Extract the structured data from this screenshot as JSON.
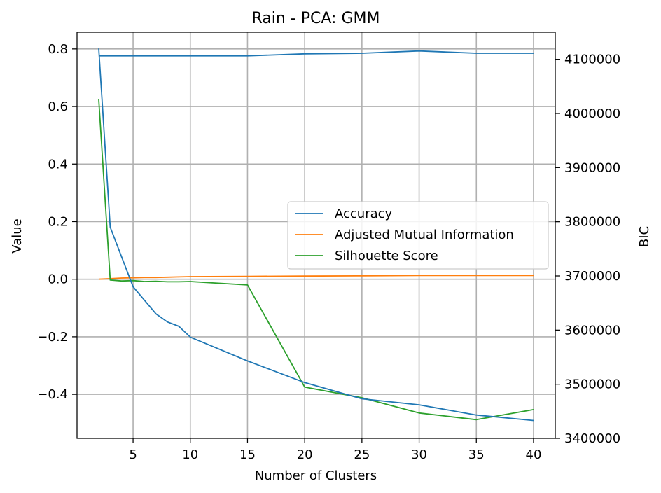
{
  "chart_data": {
    "type": "line",
    "title": "Rain - PCA: GMM",
    "xlabel": "Number of Clusters",
    "ylabel": "Value",
    "y2label": "BIC",
    "xlim": [
      0.1,
      41.9
    ],
    "ylim": [
      -0.553,
      0.858
    ],
    "y2lim": [
      3400000,
      4150000
    ],
    "xticks": [
      5,
      10,
      15,
      20,
      25,
      30,
      35,
      40
    ],
    "yticks": [
      -0.4,
      -0.2,
      0.0,
      0.2,
      0.4,
      0.6,
      0.8
    ],
    "yticklabels": [
      "−0.4",
      "−0.2",
      "0.0",
      "0.2",
      "0.4",
      "0.6",
      "0.8"
    ],
    "y2ticks": [
      3400000,
      3500000,
      3600000,
      3700000,
      3800000,
      3900000,
      4000000,
      4100000
    ],
    "y2ticklabels": [
      "3400000",
      "3500000",
      "3600000",
      "3700000",
      "3800000",
      "3900000",
      "4000000",
      "4100000"
    ],
    "grid": true,
    "legend_position": "center-right",
    "legend": [
      "Accuracy",
      "Adjusted Mutual Information",
      "Silhouette Score"
    ],
    "series": [
      {
        "name": "Accuracy",
        "axis": "left",
        "color": "#1f77b4",
        "x": [
          2,
          3,
          4,
          5,
          6,
          7,
          8,
          9,
          10,
          15,
          20,
          25,
          30,
          35,
          40
        ],
        "values": [
          0.776,
          0.776,
          0.776,
          0.776,
          0.776,
          0.776,
          0.776,
          0.776,
          0.776,
          0.776,
          0.783,
          0.785,
          0.793,
          0.785,
          0.785
        ]
      },
      {
        "name": "Adjusted Mutual Information",
        "axis": "left",
        "color": "#ff7f0e",
        "x": [
          2,
          3,
          4,
          5,
          6,
          7,
          8,
          9,
          10,
          15,
          20,
          25,
          30,
          35,
          40
        ],
        "values": [
          0.0,
          0.002,
          0.004,
          0.005,
          0.006,
          0.006,
          0.007,
          0.008,
          0.009,
          0.01,
          0.011,
          0.012,
          0.013,
          0.013,
          0.013
        ]
      },
      {
        "name": "Silhouette Score",
        "axis": "left",
        "color": "#2ca02c",
        "x": [
          2,
          3,
          4,
          5,
          6,
          7,
          8,
          9,
          10,
          15,
          20,
          25,
          30,
          35,
          40
        ],
        "values": [
          0.625,
          -0.003,
          -0.006,
          -0.005,
          -0.008,
          -0.007,
          -0.009,
          -0.009,
          -0.008,
          -0.02,
          -0.375,
          -0.412,
          -0.465,
          -0.488,
          -0.453
        ]
      },
      {
        "name": "BIC",
        "axis": "right",
        "color": "#1f77b4",
        "x": [
          2,
          3,
          4,
          5,
          6,
          7,
          8,
          9,
          10,
          15,
          20,
          25,
          30,
          35,
          40
        ],
        "values": [
          4120000,
          3790000,
          3735000,
          3680000,
          3655000,
          3630000,
          3615000,
          3607000,
          3587000,
          3543000,
          3503000,
          3473000,
          3462000,
          3443000,
          3433000
        ]
      }
    ]
  }
}
